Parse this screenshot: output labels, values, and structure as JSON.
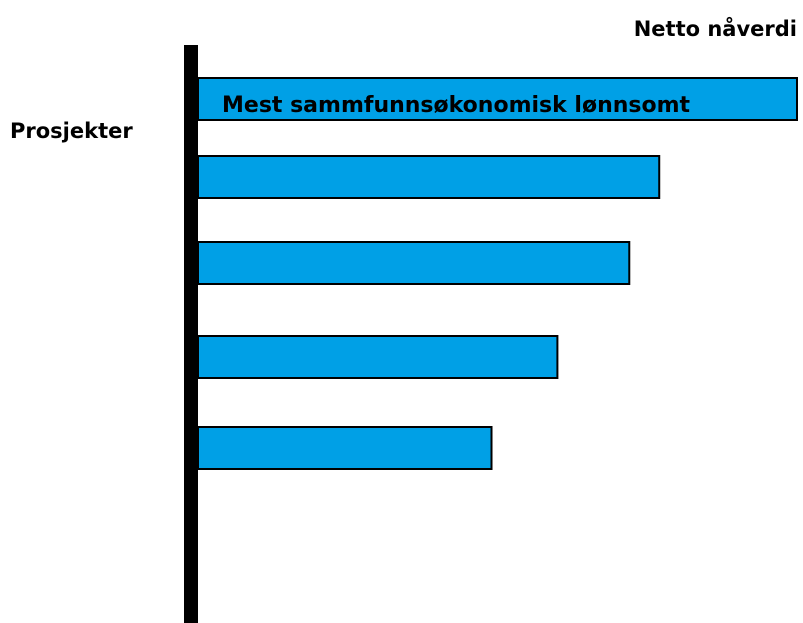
{
  "chart_data": {
    "type": "bar",
    "orientation": "horizontal",
    "x_label": "Netto nåverdi",
    "y_label": "Prosjekter",
    "annotation": "Mest sammfunnsøkonomisk lønnsomt",
    "categories": [
      null,
      null,
      null,
      null,
      null
    ],
    "values": [
      100,
      77,
      72,
      60,
      49
    ],
    "color": "#00a0e6",
    "xlim": [
      0,
      100
    ]
  }
}
